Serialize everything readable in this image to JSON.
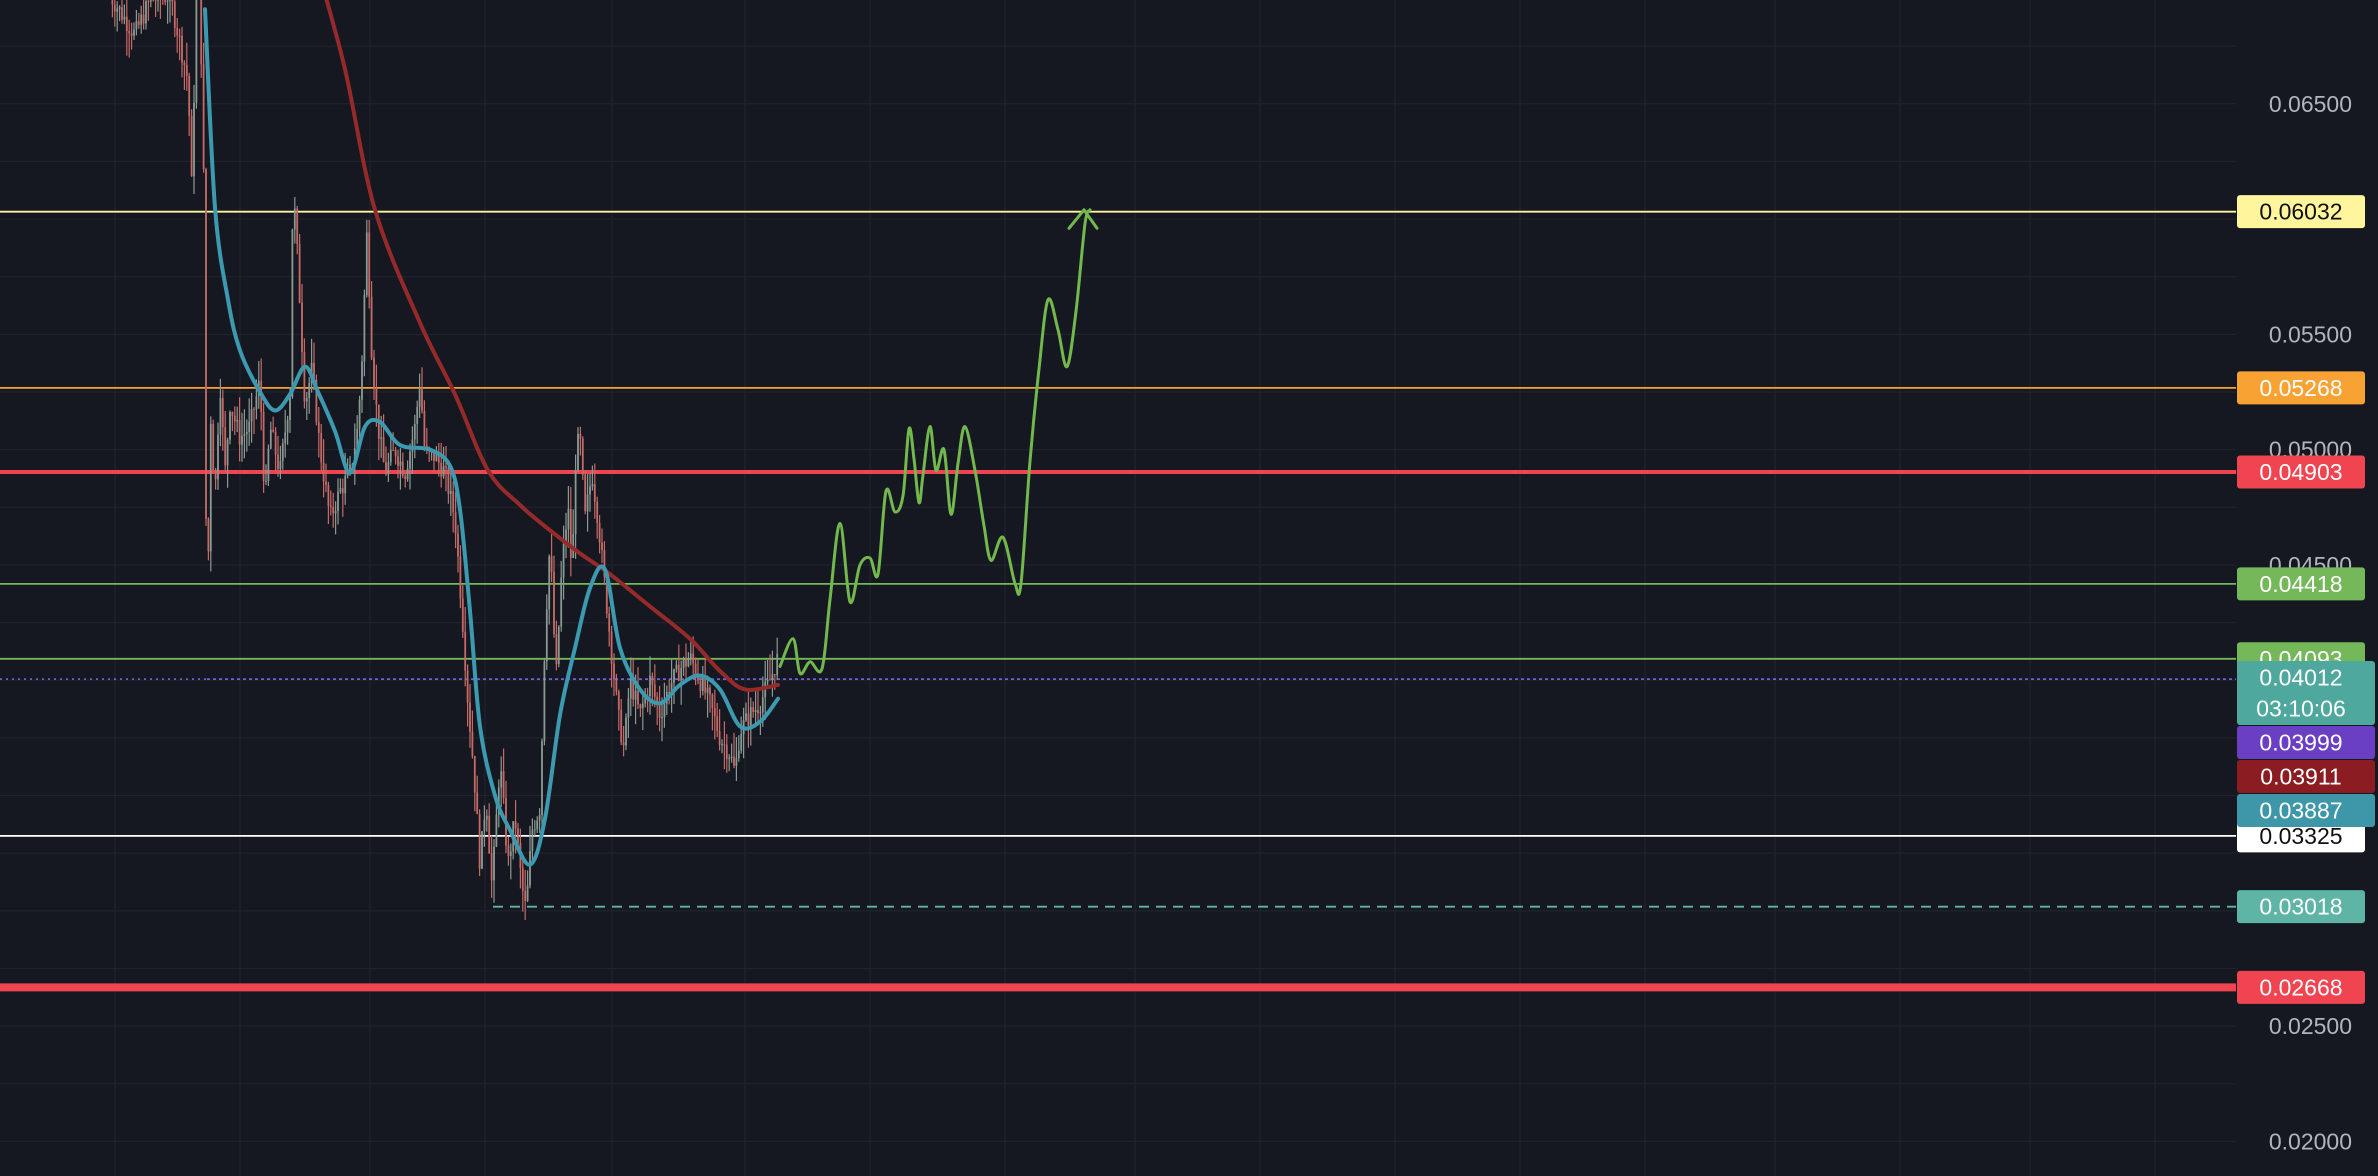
{
  "chart_data": {
    "type": "candlestick",
    "y_axis": {
      "scale": "linear",
      "range": [
        0.0185,
        0.0695
      ],
      "ticks": [
        "0.06500",
        "0.05500",
        "0.05000",
        "0.04500",
        "0.02500",
        "0.02000"
      ],
      "tick_values": [
        0.065,
        0.055,
        0.05,
        0.045,
        0.025,
        0.02
      ]
    },
    "grid": true,
    "x_index_range": [
      0,
      1470
    ],
    "horizontal_levels": [
      {
        "value": 0.06032,
        "label": "0.06032",
        "color": "#fff59d",
        "text_color": "#111111",
        "style": "solid",
        "weight": "thin",
        "start_x": 0
      },
      {
        "value": 0.05268,
        "label": "0.05268",
        "color": "#f7a233",
        "text_color": "#ffffff",
        "style": "solid",
        "weight": "thin",
        "start_x": 0
      },
      {
        "value": 0.04903,
        "label": "0.04903",
        "color": "#f04451",
        "text_color": "#ffffff",
        "style": "solid",
        "weight": "medium",
        "start_x": 0
      },
      {
        "value": 0.04418,
        "label": "0.04418",
        "color": "#74b85a",
        "text_color": "#ffffff",
        "style": "solid",
        "weight": "thin",
        "start_x": 0
      },
      {
        "value": 0.04093,
        "label": "0.04093",
        "color": "#74b85a",
        "text_color": "#ffffff",
        "style": "solid",
        "weight": "thin",
        "start_x": 0
      },
      {
        "value": 0.03325,
        "label": "0.03325",
        "color": "#ffffff",
        "text_color": "#111111",
        "style": "solid",
        "weight": "thin",
        "start_x": 0
      },
      {
        "value": 0.03018,
        "label": "0.03018",
        "color": "#5fb5a5",
        "text_color": "#ffffff",
        "style": "dashed",
        "weight": "thin",
        "start_x": 493
      },
      {
        "value": 0.02668,
        "label": "0.02668",
        "color": "#f04451",
        "text_color": "#ffffff",
        "style": "solid",
        "weight": "thick",
        "start_x": 0
      }
    ],
    "price_lines": [
      {
        "value": 0.04005,
        "color": "#7b6cf6",
        "style": "dotted-left-solid-right",
        "split_x": 207
      }
    ],
    "price_badges": [
      {
        "value": 0.04012,
        "label": "0.04012",
        "sublabel": "03:10:06",
        "color": "#4fa89e",
        "text_color": "#ffffff"
      },
      {
        "value": 0.03999,
        "label": "0.03999",
        "color": "#6a3fc4",
        "text_color": "#ffffff"
      },
      {
        "value": 0.03911,
        "label": "0.03911",
        "color": "#8b1d22",
        "text_color": "#ffffff"
      },
      {
        "value": 0.03887,
        "label": "0.03887",
        "color": "#3e97a8",
        "text_color": "#ffffff"
      }
    ],
    "moving_averages": [
      {
        "color": "#962a2a",
        "points": [
          [
            320,
            0.0705
          ],
          [
            345,
            0.0665
          ],
          [
            375,
            0.0604
          ],
          [
            420,
            0.0555
          ],
          [
            455,
            0.0524
          ],
          [
            488,
            0.0491
          ],
          [
            520,
            0.0476
          ],
          [
            550,
            0.0465
          ],
          [
            580,
            0.0455
          ],
          [
            610,
            0.0446
          ],
          [
            650,
            0.0432
          ],
          [
            690,
            0.0418
          ],
          [
            720,
            0.0404
          ],
          [
            745,
            0.0396
          ],
          [
            778,
            0.0398
          ]
        ]
      },
      {
        "color": "#3c9ab0",
        "points": [
          [
            205,
            0.0691
          ],
          [
            215,
            0.0605
          ],
          [
            228,
            0.0565
          ],
          [
            240,
            0.0543
          ],
          [
            260,
            0.0525
          ],
          [
            275,
            0.0517
          ],
          [
            290,
            0.0524
          ],
          [
            305,
            0.0536
          ],
          [
            318,
            0.0525
          ],
          [
            335,
            0.0508
          ],
          [
            350,
            0.049
          ],
          [
            365,
            0.051
          ],
          [
            380,
            0.0512
          ],
          [
            400,
            0.0502
          ],
          [
            430,
            0.05
          ],
          [
            450,
            0.0493
          ],
          [
            460,
            0.0474
          ],
          [
            470,
            0.043
          ],
          [
            480,
            0.038
          ],
          [
            495,
            0.035
          ],
          [
            510,
            0.0335
          ],
          [
            530,
            0.032
          ],
          [
            545,
            0.034
          ],
          [
            560,
            0.0385
          ],
          [
            575,
            0.0414
          ],
          [
            590,
            0.044
          ],
          [
            605,
            0.0448
          ],
          [
            620,
            0.0414
          ],
          [
            640,
            0.0396
          ],
          [
            660,
            0.039
          ],
          [
            680,
            0.0398
          ],
          [
            700,
            0.0402
          ],
          [
            720,
            0.0396
          ],
          [
            740,
            0.038
          ],
          [
            760,
            0.0382
          ],
          [
            778,
            0.0392
          ]
        ]
      }
    ],
    "price_path": [
      [
        110,
        0.0697
      ],
      [
        135,
        0.068
      ],
      [
        150,
        0.0695
      ],
      [
        170,
        0.0697
      ],
      [
        188,
        0.066
      ],
      [
        192,
        0.061
      ],
      [
        196,
        0.0697
      ],
      [
        200,
        0.0697
      ],
      [
        204,
        0.061
      ],
      [
        207,
        0.04
      ],
      [
        210,
        0.052
      ],
      [
        215,
        0.048
      ],
      [
        220,
        0.053
      ],
      [
        225,
        0.049
      ],
      [
        230,
        0.052
      ],
      [
        240,
        0.0505
      ],
      [
        250,
        0.051
      ],
      [
        260,
        0.053
      ],
      [
        265,
        0.0475
      ],
      [
        270,
        0.051
      ],
      [
        280,
        0.049
      ],
      [
        290,
        0.0525
      ],
      [
        293,
        0.0615
      ],
      [
        298,
        0.058
      ],
      [
        305,
        0.052
      ],
      [
        312,
        0.0535
      ],
      [
        320,
        0.05
      ],
      [
        330,
        0.047
      ],
      [
        340,
        0.0482
      ],
      [
        350,
        0.049
      ],
      [
        358,
        0.051
      ],
      [
        362,
        0.054
      ],
      [
        367,
        0.0595
      ],
      [
        372,
        0.054
      ],
      [
        378,
        0.051
      ],
      [
        385,
        0.049
      ],
      [
        395,
        0.05
      ],
      [
        405,
        0.049
      ],
      [
        415,
        0.051
      ],
      [
        420,
        0.053
      ],
      [
        425,
        0.0498
      ],
      [
        435,
        0.0497
      ],
      [
        445,
        0.049
      ],
      [
        455,
        0.047
      ],
      [
        462,
        0.043
      ],
      [
        468,
        0.039
      ],
      [
        474,
        0.036
      ],
      [
        480,
        0.032
      ],
      [
        486,
        0.035
      ],
      [
        492,
        0.031
      ],
      [
        500,
        0.0365
      ],
      [
        508,
        0.032
      ],
      [
        515,
        0.034
      ],
      [
        522,
        0.031
      ],
      [
        526,
        0.03
      ],
      [
        532,
        0.0335
      ],
      [
        540,
        0.0345
      ],
      [
        545,
        0.042
      ],
      [
        550,
        0.046
      ],
      [
        556,
        0.04
      ],
      [
        562,
        0.045
      ],
      [
        568,
        0.0475
      ],
      [
        572,
        0.0445
      ],
      [
        576,
        0.05
      ],
      [
        580,
        0.0505
      ],
      [
        585,
        0.047
      ],
      [
        592,
        0.049
      ],
      [
        598,
        0.047
      ],
      [
        605,
        0.044
      ],
      [
        612,
        0.041
      ],
      [
        618,
        0.0385
      ],
      [
        624,
        0.037
      ],
      [
        630,
        0.04
      ],
      [
        640,
        0.0385
      ],
      [
        650,
        0.04
      ],
      [
        660,
        0.0385
      ],
      [
        670,
        0.0398
      ],
      [
        680,
        0.0405
      ],
      [
        690,
        0.041
      ],
      [
        700,
        0.04
      ],
      [
        710,
        0.039
      ],
      [
        720,
        0.0375
      ],
      [
        730,
        0.0368
      ],
      [
        735,
        0.036
      ],
      [
        740,
        0.0378
      ],
      [
        750,
        0.0385
      ],
      [
        760,
        0.039
      ],
      [
        770,
        0.04
      ],
      [
        778,
        0.041
      ]
    ],
    "projection_path": {
      "color": "#72b84c",
      "points": [
        [
          780,
          0.0406
        ],
        [
          793,
          0.0418
        ],
        [
          800,
          0.0403
        ],
        [
          810,
          0.0408
        ],
        [
          822,
          0.0405
        ],
        [
          830,
          0.0435
        ],
        [
          840,
          0.0468
        ],
        [
          850,
          0.0434
        ],
        [
          860,
          0.045
        ],
        [
          870,
          0.0453
        ],
        [
          878,
          0.0446
        ],
        [
          886,
          0.0482
        ],
        [
          895,
          0.0473
        ],
        [
          903,
          0.048
        ],
        [
          909,
          0.0509
        ],
        [
          914,
          0.0496
        ],
        [
          919,
          0.0477
        ],
        [
          923,
          0.0489
        ],
        [
          930,
          0.051
        ],
        [
          936,
          0.0491
        ],
        [
          944,
          0.05
        ],
        [
          951,
          0.0472
        ],
        [
          958,
          0.0494
        ],
        [
          965,
          0.051
        ],
        [
          975,
          0.0491
        ],
        [
          984,
          0.0467
        ],
        [
          991,
          0.0452
        ],
        [
          1003,
          0.0462
        ],
        [
          1015,
          0.0442
        ],
        [
          1021,
          0.0442
        ],
        [
          1030,
          0.0495
        ],
        [
          1039,
          0.0535
        ],
        [
          1048,
          0.0565
        ],
        [
          1058,
          0.0552
        ],
        [
          1067,
          0.0536
        ],
        [
          1076,
          0.056
        ],
        [
          1085,
          0.0598
        ],
        [
          1090,
          0.0604
        ]
      ],
      "arrowhead": {
        "tip": [
          1084,
          0.0604
        ],
        "left": [
          1069,
          0.0596
        ],
        "right": [
          1097,
          0.0596
        ]
      }
    }
  }
}
